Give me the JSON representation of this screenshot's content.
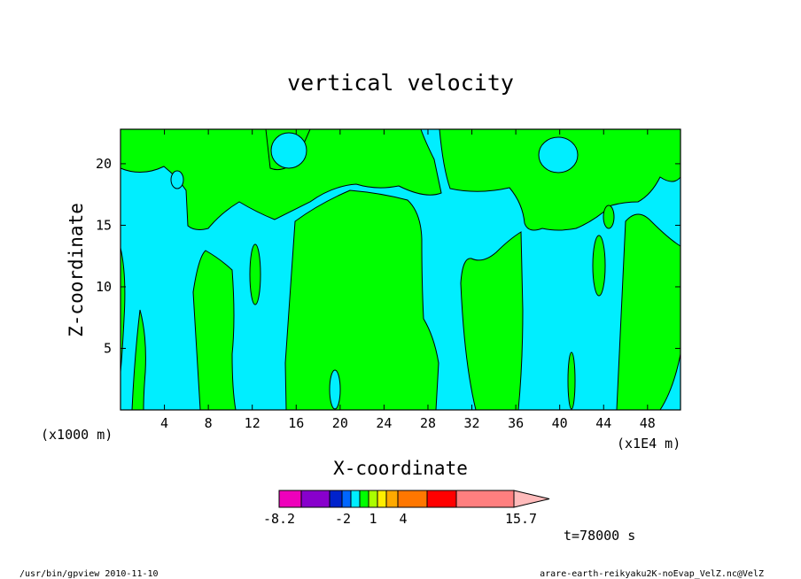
{
  "chart_data": {
    "type": "heatmap",
    "title": "vertical velocity",
    "xlabel": "X-coordinate",
    "ylabel": "Z-coordinate",
    "x_unit_left": "(x1000 m)",
    "x_unit_right": "(x1E4 m)",
    "x_ticks": [
      4,
      8,
      12,
      16,
      20,
      24,
      28,
      32,
      36,
      40,
      44,
      48
    ],
    "y_ticks": [
      5,
      10,
      15,
      20
    ],
    "xlim": [
      0,
      51
    ],
    "ylim": [
      0,
      22.8
    ],
    "grid": false,
    "regions": {
      "positive_color": "#00ff00",
      "negative_color": "#00eeff"
    },
    "colorbar": {
      "colors": [
        "#ee00bb",
        "#8800cc",
        "#0022cc",
        "#0066ff",
        "#00eeff",
        "#00ff00",
        "#aaff00",
        "#ffee00",
        "#ffaa00",
        "#ff7700",
        "#ff0000",
        "#ff7f7f",
        "#ffbbbb"
      ],
      "tick_labels": [
        "-8.2",
        "-2",
        "1",
        "4",
        "15.7"
      ]
    },
    "time_label": "t=78000 s"
  },
  "footer": {
    "left": "/usr/bin/gpview  2010-11-10",
    "right": "arare-earth-reikyaku2K-noEvap_VelZ.nc@VelZ"
  }
}
